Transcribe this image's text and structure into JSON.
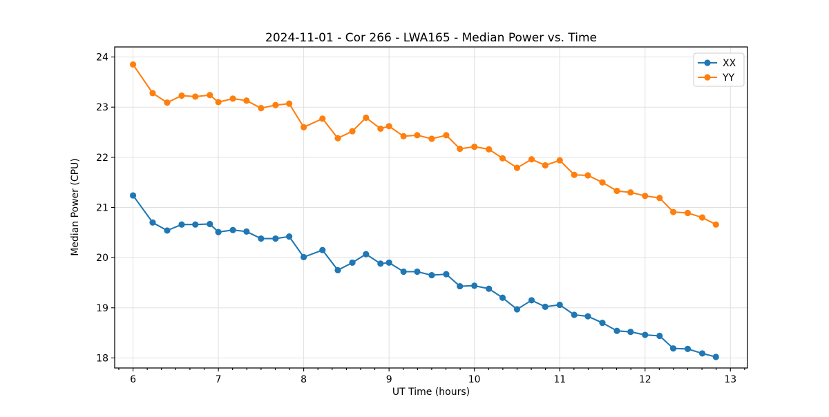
{
  "chart_data": {
    "type": "line",
    "title": "2024-11-01 - Cor 266 - LWA165 - Median Power vs. Time",
    "xlabel": "UT Time (hours)",
    "ylabel": "Median Power (CPU)",
    "xlim": [
      5.785,
      13.2
    ],
    "ylim": [
      17.8,
      24.2
    ],
    "x_ticks": [
      6,
      7,
      8,
      9,
      10,
      11,
      12,
      13
    ],
    "y_ticks": [
      18,
      19,
      20,
      21,
      22,
      23,
      24
    ],
    "x_minor_tick_step_hours": 0.166667,
    "grid": true,
    "legend_position": "upper right",
    "x": [
      6.0,
      6.23,
      6.4,
      6.57,
      6.73,
      6.9,
      7.0,
      7.17,
      7.33,
      7.5,
      7.67,
      7.83,
      8.0,
      8.22,
      8.4,
      8.57,
      8.73,
      8.9,
      9.0,
      9.17,
      9.33,
      9.5,
      9.67,
      9.83,
      10.0,
      10.17,
      10.33,
      10.5,
      10.67,
      10.83,
      11.0,
      11.17,
      11.33,
      11.5,
      11.67,
      11.83,
      12.0,
      12.17,
      12.33,
      12.5,
      12.67,
      12.83
    ],
    "series": [
      {
        "name": "XX",
        "color": "#1f77b4",
        "values": [
          21.24,
          20.7,
          20.54,
          20.66,
          20.66,
          20.67,
          20.51,
          20.55,
          20.52,
          20.38,
          20.38,
          20.42,
          20.01,
          20.15,
          19.75,
          19.9,
          20.07,
          19.88,
          19.9,
          19.72,
          19.72,
          19.65,
          19.67,
          19.43,
          19.44,
          19.38,
          19.2,
          18.97,
          19.15,
          19.02,
          19.06,
          18.86,
          18.83,
          18.7,
          18.54,
          18.52,
          18.46,
          18.44,
          18.19,
          18.18,
          18.09,
          18.02
        ]
      },
      {
        "name": "YY",
        "color": "#ff7f0e",
        "values": [
          23.85,
          23.28,
          23.09,
          23.23,
          23.21,
          23.24,
          23.1,
          23.17,
          23.13,
          22.98,
          23.04,
          23.07,
          22.6,
          22.77,
          22.38,
          22.52,
          22.79,
          22.57,
          22.62,
          22.42,
          22.44,
          22.37,
          22.44,
          22.17,
          22.21,
          22.16,
          21.98,
          21.79,
          21.96,
          21.84,
          21.94,
          21.65,
          21.64,
          21.5,
          21.33,
          21.3,
          21.23,
          21.19,
          20.91,
          20.89,
          20.8,
          20.66
        ]
      }
    ]
  },
  "style": {
    "grid_color": "#e0e0e0",
    "spine_color": "#000000",
    "background_color": "#ffffff"
  }
}
